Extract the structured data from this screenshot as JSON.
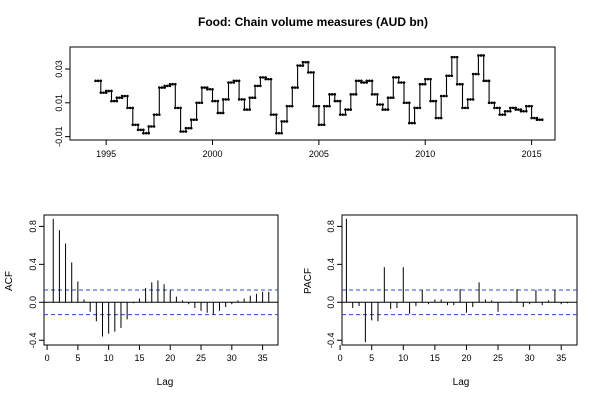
{
  "chart_data": [
    {
      "type": "line",
      "title": "Food: Chain volume measures (AUD bn)",
      "xlabel": "",
      "ylabel": "",
      "xlim": [
        1993.3,
        2016.1
      ],
      "ylim": [
        -0.012,
        0.043
      ],
      "xticks": [
        "1995",
        "2000",
        "2005",
        "2010",
        "2015"
      ],
      "yticks": [
        "-0.01",
        "0.01",
        "0.03"
      ],
      "series": [
        {
          "x": [
            1994.5,
            1994.75,
            1995.0,
            1995.25,
            1995.5,
            1995.75,
            1996.0,
            1996.25,
            1996.5,
            1996.75,
            1997.0,
            1997.25,
            1997.5,
            1997.75,
            1998.0,
            1998.25,
            1998.5,
            1998.75,
            1999.0,
            1999.25,
            1999.5,
            1999.75,
            2000.0,
            2000.25,
            2000.5,
            2000.75,
            2001.0,
            2001.25,
            2001.5,
            2001.75,
            2002.0,
            2002.25,
            2002.5,
            2002.75,
            2003.0,
            2003.25,
            2003.5,
            2003.75,
            2004.0,
            2004.25,
            2004.5,
            2004.75,
            2005.0,
            2005.25,
            2005.5,
            2005.75,
            2006.0,
            2006.25,
            2006.5,
            2006.75,
            2007.0,
            2007.25,
            2007.5,
            2007.75,
            2008.0,
            2008.25,
            2008.5,
            2008.75,
            2009.0,
            2009.25,
            2009.5,
            2009.75,
            2010.0,
            2010.25,
            2010.5,
            2010.75,
            2011.0,
            2011.25,
            2011.5,
            2011.75,
            2012.0,
            2012.25,
            2012.5,
            2012.75,
            2013.0,
            2013.25,
            2013.5,
            2013.75,
            2014.0,
            2014.25,
            2014.5,
            2014.75,
            2015.0,
            2015.25
          ],
          "values": [
            0.023,
            0.016,
            0.017,
            0.011,
            0.013,
            0.014,
            0.007,
            -0.003,
            -0.006,
            -0.008,
            -0.004,
            0.003,
            0.019,
            0.02,
            0.021,
            0.007,
            -0.007,
            -0.005,
            0.0,
            0.01,
            0.019,
            0.018,
            0.011,
            0.004,
            0.012,
            0.022,
            0.023,
            0.012,
            0.006,
            0.013,
            0.02,
            0.025,
            0.024,
            0.003,
            -0.008,
            -0.001,
            0.008,
            0.019,
            0.032,
            0.034,
            0.028,
            0.008,
            -0.003,
            0.008,
            0.015,
            0.011,
            0.003,
            0.006,
            0.015,
            0.023,
            0.022,
            0.023,
            0.015,
            0.009,
            0.006,
            0.013,
            0.025,
            0.022,
            0.01,
            -0.002,
            0.007,
            0.021,
            0.024,
            0.011,
            0.001,
            0.014,
            0.026,
            0.037,
            0.021,
            0.007,
            0.012,
            0.027,
            0.038,
            0.023,
            0.01,
            0.007,
            0.003,
            0.005,
            0.007,
            0.006,
            0.005,
            0.008,
            0.001,
            0.0
          ]
        }
      ]
    },
    {
      "type": "bar",
      "title": "",
      "xlabel": "Lag",
      "ylabel": "ACF",
      "xlim": [
        -0.5,
        37.5
      ],
      "ylim": [
        -0.45,
        0.92
      ],
      "xticks": [
        "0",
        "5",
        "10",
        "15",
        "20",
        "25",
        "30",
        "35"
      ],
      "yticks": [
        "-0.4",
        "0.0",
        "0.4",
        "0.8"
      ],
      "ci": 0.13,
      "lags": [
        1,
        2,
        3,
        4,
        5,
        6,
        7,
        8,
        9,
        10,
        11,
        12,
        13,
        14,
        15,
        16,
        17,
        18,
        19,
        20,
        21,
        22,
        23,
        24,
        25,
        26,
        27,
        28,
        29,
        30,
        31,
        32,
        33,
        34,
        35,
        36
      ],
      "values": [
        0.88,
        0.76,
        0.62,
        0.42,
        0.22,
        0.03,
        -0.1,
        -0.2,
        -0.36,
        -0.33,
        -0.31,
        -0.27,
        -0.18,
        -0.01,
        0.04,
        0.15,
        0.21,
        0.23,
        0.19,
        0.13,
        0.06,
        0.02,
        -0.02,
        -0.06,
        -0.09,
        -0.11,
        -0.13,
        -0.09,
        -0.05,
        -0.02,
        0.02,
        0.04,
        0.07,
        0.09,
        0.11,
        0.11
      ]
    },
    {
      "type": "bar",
      "title": "",
      "xlabel": "Lag",
      "ylabel": "PACF",
      "xlim": [
        0.3,
        37.5
      ],
      "ylim": [
        -0.45,
        0.92
      ],
      "xticks": [
        "0",
        "5",
        "10",
        "15",
        "20",
        "25",
        "30",
        "35"
      ],
      "yticks": [
        "-0.4",
        "0.0",
        "0.4",
        "0.8"
      ],
      "ci": 0.13,
      "lags": [
        1,
        2,
        3,
        4,
        5,
        6,
        7,
        8,
        9,
        10,
        11,
        12,
        13,
        14,
        15,
        16,
        17,
        18,
        19,
        20,
        21,
        22,
        23,
        24,
        25,
        26,
        27,
        28,
        29,
        30,
        31,
        32,
        33,
        34,
        35,
        36
      ],
      "values": [
        0.88,
        -0.06,
        -0.04,
        -0.42,
        -0.19,
        -0.2,
        0.37,
        -0.07,
        -0.06,
        0.37,
        -0.12,
        -0.04,
        0.13,
        -0.02,
        0.03,
        0.03,
        -0.03,
        -0.03,
        0.14,
        -0.11,
        -0.05,
        0.21,
        0.03,
        0.02,
        -0.1,
        0.0,
        0.01,
        0.14,
        -0.05,
        -0.02,
        0.13,
        -0.03,
        0.02,
        0.13,
        -0.02,
        -0.01
      ]
    }
  ]
}
